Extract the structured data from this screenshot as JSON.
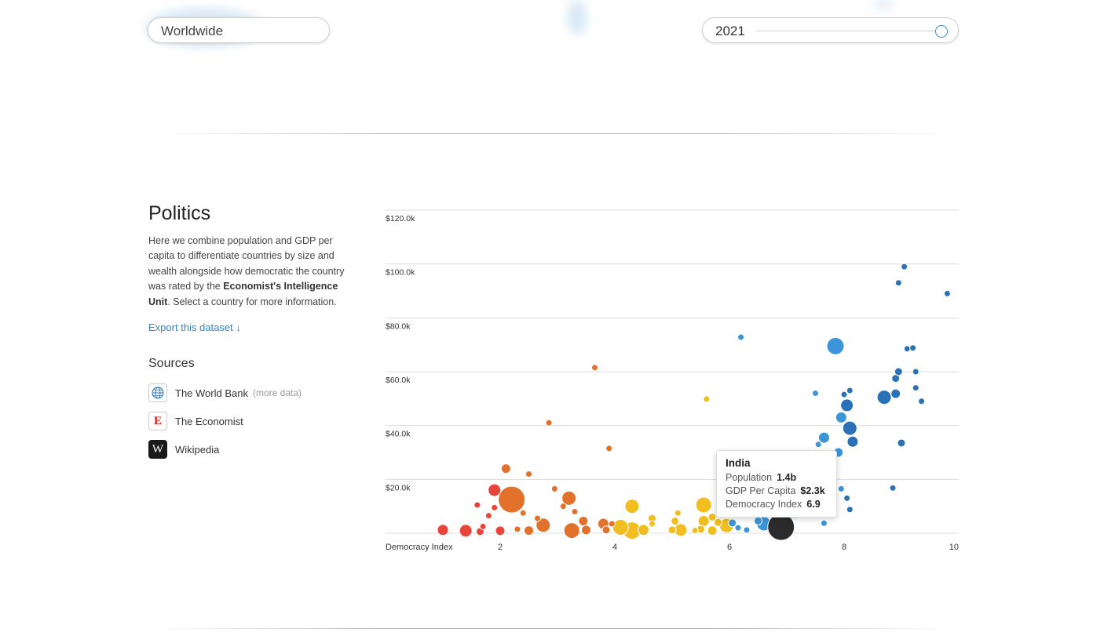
{
  "controls": {
    "region_value": "Worldwide",
    "year_value": "2021",
    "year_slider_fraction": 0.98
  },
  "section": {
    "title": "Politics",
    "description_before": "Here we combine population and GDP per capita to differentiate countries by size and wealth alongside how democratic the country was rated by the ",
    "description_bold": "Economist's Intelligence Unit",
    "description_after": ". Select a country for more information.",
    "export_label": "Export this dataset ↓",
    "sources_heading": "Sources",
    "sources": [
      {
        "name": "The World Bank",
        "more": "(more data)",
        "icon": "globe-icon"
      },
      {
        "name": "The Economist",
        "icon": "economist-logo-icon"
      },
      {
        "name": "Wikipedia",
        "icon": "wikipedia-logo-icon"
      }
    ]
  },
  "tooltip": {
    "name": "India",
    "population_label": "Population",
    "population_value": "1.4b",
    "gdp_label": "GDP Per Capita",
    "gdp_value": "$2.3k",
    "democracy_label": "Democracy Index",
    "democracy_value": "6.9"
  },
  "colors": {
    "red": "#e8443a",
    "orange": "#e2712b",
    "yellow": "#f2bd1e",
    "light_blue": "#3c95d9",
    "dark_blue": "#2a72b5",
    "selected": "#2b2b2b",
    "grid": "#dcdcdc",
    "accent": "#2d86c9"
  },
  "chart_data": {
    "type": "scatter",
    "xlabel": "Democracy Index",
    "ylabel": "",
    "xlim": [
      0,
      10
    ],
    "ylim": [
      0,
      120000
    ],
    "x_ticks": [
      "2",
      "4",
      "6",
      "8",
      "10"
    ],
    "x_tick_values": [
      2,
      4,
      6,
      8,
      10
    ],
    "y_ticks": [
      "$20.0k",
      "$40.0k",
      "$60.0k",
      "$80.0k",
      "$100.0k",
      "$120.0k"
    ],
    "y_tick_values": [
      20000,
      40000,
      60000,
      80000,
      100000,
      120000
    ],
    "grid": true,
    "size_encodes": "population",
    "color_encodes": "regime type",
    "points": [
      {
        "x": 1.0,
        "y": 1200,
        "size": 7,
        "color": "red"
      },
      {
        "x": 1.4,
        "y": 900,
        "size": 8,
        "color": "red"
      },
      {
        "x": 1.6,
        "y": 10500,
        "size": 4,
        "color": "red"
      },
      {
        "x": 1.7,
        "y": 2500,
        "size": 4,
        "color": "red"
      },
      {
        "x": 1.8,
        "y": 6500,
        "size": 4,
        "color": "red"
      },
      {
        "x": 1.9,
        "y": 16000,
        "size": 8,
        "color": "red"
      },
      {
        "x": 1.65,
        "y": 600,
        "size": 5,
        "color": "red"
      },
      {
        "x": 1.9,
        "y": 9500,
        "size": 4,
        "color": "red"
      },
      {
        "x": 2.0,
        "y": 900,
        "size": 6,
        "color": "red"
      },
      {
        "x": 2.1,
        "y": 24000,
        "size": 6,
        "color": "orange"
      },
      {
        "x": 2.2,
        "y": 12500,
        "size": 17,
        "color": "orange"
      },
      {
        "x": 2.3,
        "y": 1500,
        "size": 4,
        "color": "orange"
      },
      {
        "x": 2.4,
        "y": 7500,
        "size": 4,
        "color": "orange"
      },
      {
        "x": 2.5,
        "y": 22000,
        "size": 4,
        "color": "orange"
      },
      {
        "x": 2.5,
        "y": 1000,
        "size": 6,
        "color": "orange"
      },
      {
        "x": 2.65,
        "y": 5500,
        "size": 4,
        "color": "orange"
      },
      {
        "x": 2.75,
        "y": 3000,
        "size": 9,
        "color": "orange"
      },
      {
        "x": 2.85,
        "y": 41000,
        "size": 4,
        "color": "orange"
      },
      {
        "x": 2.95,
        "y": 16500,
        "size": 4,
        "color": "orange"
      },
      {
        "x": 3.1,
        "y": 10000,
        "size": 4,
        "color": "orange"
      },
      {
        "x": 3.2,
        "y": 13000,
        "size": 9,
        "color": "orange"
      },
      {
        "x": 3.25,
        "y": 1000,
        "size": 10,
        "color": "orange"
      },
      {
        "x": 3.3,
        "y": 8000,
        "size": 4,
        "color": "orange"
      },
      {
        "x": 3.45,
        "y": 4500,
        "size": 6,
        "color": "orange"
      },
      {
        "x": 3.5,
        "y": 1200,
        "size": 6,
        "color": "orange"
      },
      {
        "x": 3.65,
        "y": 61500,
        "size": 4,
        "color": "orange"
      },
      {
        "x": 3.8,
        "y": 3500,
        "size": 7,
        "color": "orange"
      },
      {
        "x": 3.85,
        "y": 1200,
        "size": 5,
        "color": "orange"
      },
      {
        "x": 3.9,
        "y": 31500,
        "size": 4,
        "color": "orange"
      },
      {
        "x": 3.95,
        "y": 3500,
        "size": 4,
        "color": "orange"
      },
      {
        "x": 4.1,
        "y": 2200,
        "size": 10,
        "color": "yellow"
      },
      {
        "x": 4.3,
        "y": 10000,
        "size": 9,
        "color": "yellow"
      },
      {
        "x": 4.3,
        "y": 1000,
        "size": 11,
        "color": "yellow"
      },
      {
        "x": 4.5,
        "y": 1200,
        "size": 7,
        "color": "yellow"
      },
      {
        "x": 4.65,
        "y": 5500,
        "size": 5,
        "color": "yellow"
      },
      {
        "x": 4.65,
        "y": 3500,
        "size": 4,
        "color": "yellow"
      },
      {
        "x": 5.0,
        "y": 1200,
        "size": 5,
        "color": "yellow"
      },
      {
        "x": 5.05,
        "y": 4500,
        "size": 5,
        "color": "yellow"
      },
      {
        "x": 5.1,
        "y": 7500,
        "size": 4,
        "color": "yellow"
      },
      {
        "x": 5.15,
        "y": 1200,
        "size": 8,
        "color": "yellow"
      },
      {
        "x": 5.4,
        "y": 1000,
        "size": 4,
        "color": "yellow"
      },
      {
        "x": 5.5,
        "y": 1500,
        "size": 5,
        "color": "yellow"
      },
      {
        "x": 5.55,
        "y": 4500,
        "size": 7,
        "color": "yellow"
      },
      {
        "x": 5.55,
        "y": 10500,
        "size": 10,
        "color": "yellow"
      },
      {
        "x": 5.6,
        "y": 49800,
        "size": 4,
        "color": "yellow"
      },
      {
        "x": 5.7,
        "y": 1000,
        "size": 6,
        "color": "yellow"
      },
      {
        "x": 5.7,
        "y": 6000,
        "size": 5,
        "color": "yellow"
      },
      {
        "x": 5.8,
        "y": 4000,
        "size": 5,
        "color": "yellow"
      },
      {
        "x": 5.95,
        "y": 2800,
        "size": 9,
        "color": "yellow"
      },
      {
        "x": 6.05,
        "y": 3800,
        "size": 5,
        "color": "light_blue"
      },
      {
        "x": 6.15,
        "y": 2000,
        "size": 4,
        "color": "light_blue"
      },
      {
        "x": 6.2,
        "y": 72800,
        "size": 4,
        "color": "light_blue"
      },
      {
        "x": 6.3,
        "y": 1200,
        "size": 4,
        "color": "light_blue"
      },
      {
        "x": 6.5,
        "y": 4500,
        "size": 5,
        "color": "light_blue"
      },
      {
        "x": 6.6,
        "y": 3500,
        "size": 9,
        "color": "light_blue"
      },
      {
        "x": 6.82,
        "y": 5200,
        "size": 4,
        "color": "light_blue"
      },
      {
        "x": 7.05,
        "y": 5000,
        "size": 4,
        "color": "light_blue"
      },
      {
        "x": 7.15,
        "y": 7000,
        "size": 5,
        "color": "light_blue"
      },
      {
        "x": 7.5,
        "y": 52000,
        "size": 4,
        "color": "light_blue"
      },
      {
        "x": 7.55,
        "y": 33000,
        "size": 4,
        "color": "light_blue"
      },
      {
        "x": 7.65,
        "y": 35500,
        "size": 7,
        "color": "light_blue"
      },
      {
        "x": 7.65,
        "y": 3700,
        "size": 4,
        "color": "light_blue"
      },
      {
        "x": 7.85,
        "y": 69500,
        "size": 11,
        "color": "light_blue"
      },
      {
        "x": 7.9,
        "y": 30000,
        "size": 6,
        "color": "light_blue"
      },
      {
        "x": 7.95,
        "y": 43000,
        "size": 7,
        "color": "light_blue"
      },
      {
        "x": 7.95,
        "y": 16500,
        "size": 4,
        "color": "light_blue"
      },
      {
        "x": 8.0,
        "y": 51500,
        "size": 4,
        "color": "dark_blue"
      },
      {
        "x": 8.05,
        "y": 47500,
        "size": 8,
        "color": "dark_blue"
      },
      {
        "x": 8.05,
        "y": 13000,
        "size": 4,
        "color": "dark_blue"
      },
      {
        "x": 8.1,
        "y": 53000,
        "size": 4,
        "color": "dark_blue"
      },
      {
        "x": 8.1,
        "y": 39000,
        "size": 9,
        "color": "dark_blue"
      },
      {
        "x": 8.1,
        "y": 8800,
        "size": 4,
        "color": "dark_blue"
      },
      {
        "x": 8.15,
        "y": 34000,
        "size": 7,
        "color": "dark_blue"
      },
      {
        "x": 8.7,
        "y": 50500,
        "size": 9,
        "color": "dark_blue"
      },
      {
        "x": 8.85,
        "y": 16800,
        "size": 4,
        "color": "dark_blue"
      },
      {
        "x": 8.9,
        "y": 51800,
        "size": 6,
        "color": "dark_blue"
      },
      {
        "x": 8.9,
        "y": 57500,
        "size": 5,
        "color": "dark_blue"
      },
      {
        "x": 8.95,
        "y": 60000,
        "size": 5,
        "color": "dark_blue"
      },
      {
        "x": 8.95,
        "y": 93000,
        "size": 4,
        "color": "dark_blue"
      },
      {
        "x": 9.0,
        "y": 33500,
        "size": 5,
        "color": "dark_blue"
      },
      {
        "x": 9.05,
        "y": 99000,
        "size": 4,
        "color": "dark_blue"
      },
      {
        "x": 9.1,
        "y": 68500,
        "size": 4,
        "color": "dark_blue"
      },
      {
        "x": 9.2,
        "y": 68800,
        "size": 4,
        "color": "dark_blue"
      },
      {
        "x": 9.25,
        "y": 60000,
        "size": 4,
        "color": "dark_blue"
      },
      {
        "x": 9.25,
        "y": 54000,
        "size": 4,
        "color": "dark_blue"
      },
      {
        "x": 9.35,
        "y": 49000,
        "size": 4,
        "color": "dark_blue"
      },
      {
        "x": 9.8,
        "y": 89000,
        "size": 4,
        "color": "dark_blue"
      },
      {
        "x": 6.9,
        "y": 2300,
        "size": 17,
        "color": "selected",
        "label": "India"
      }
    ]
  }
}
